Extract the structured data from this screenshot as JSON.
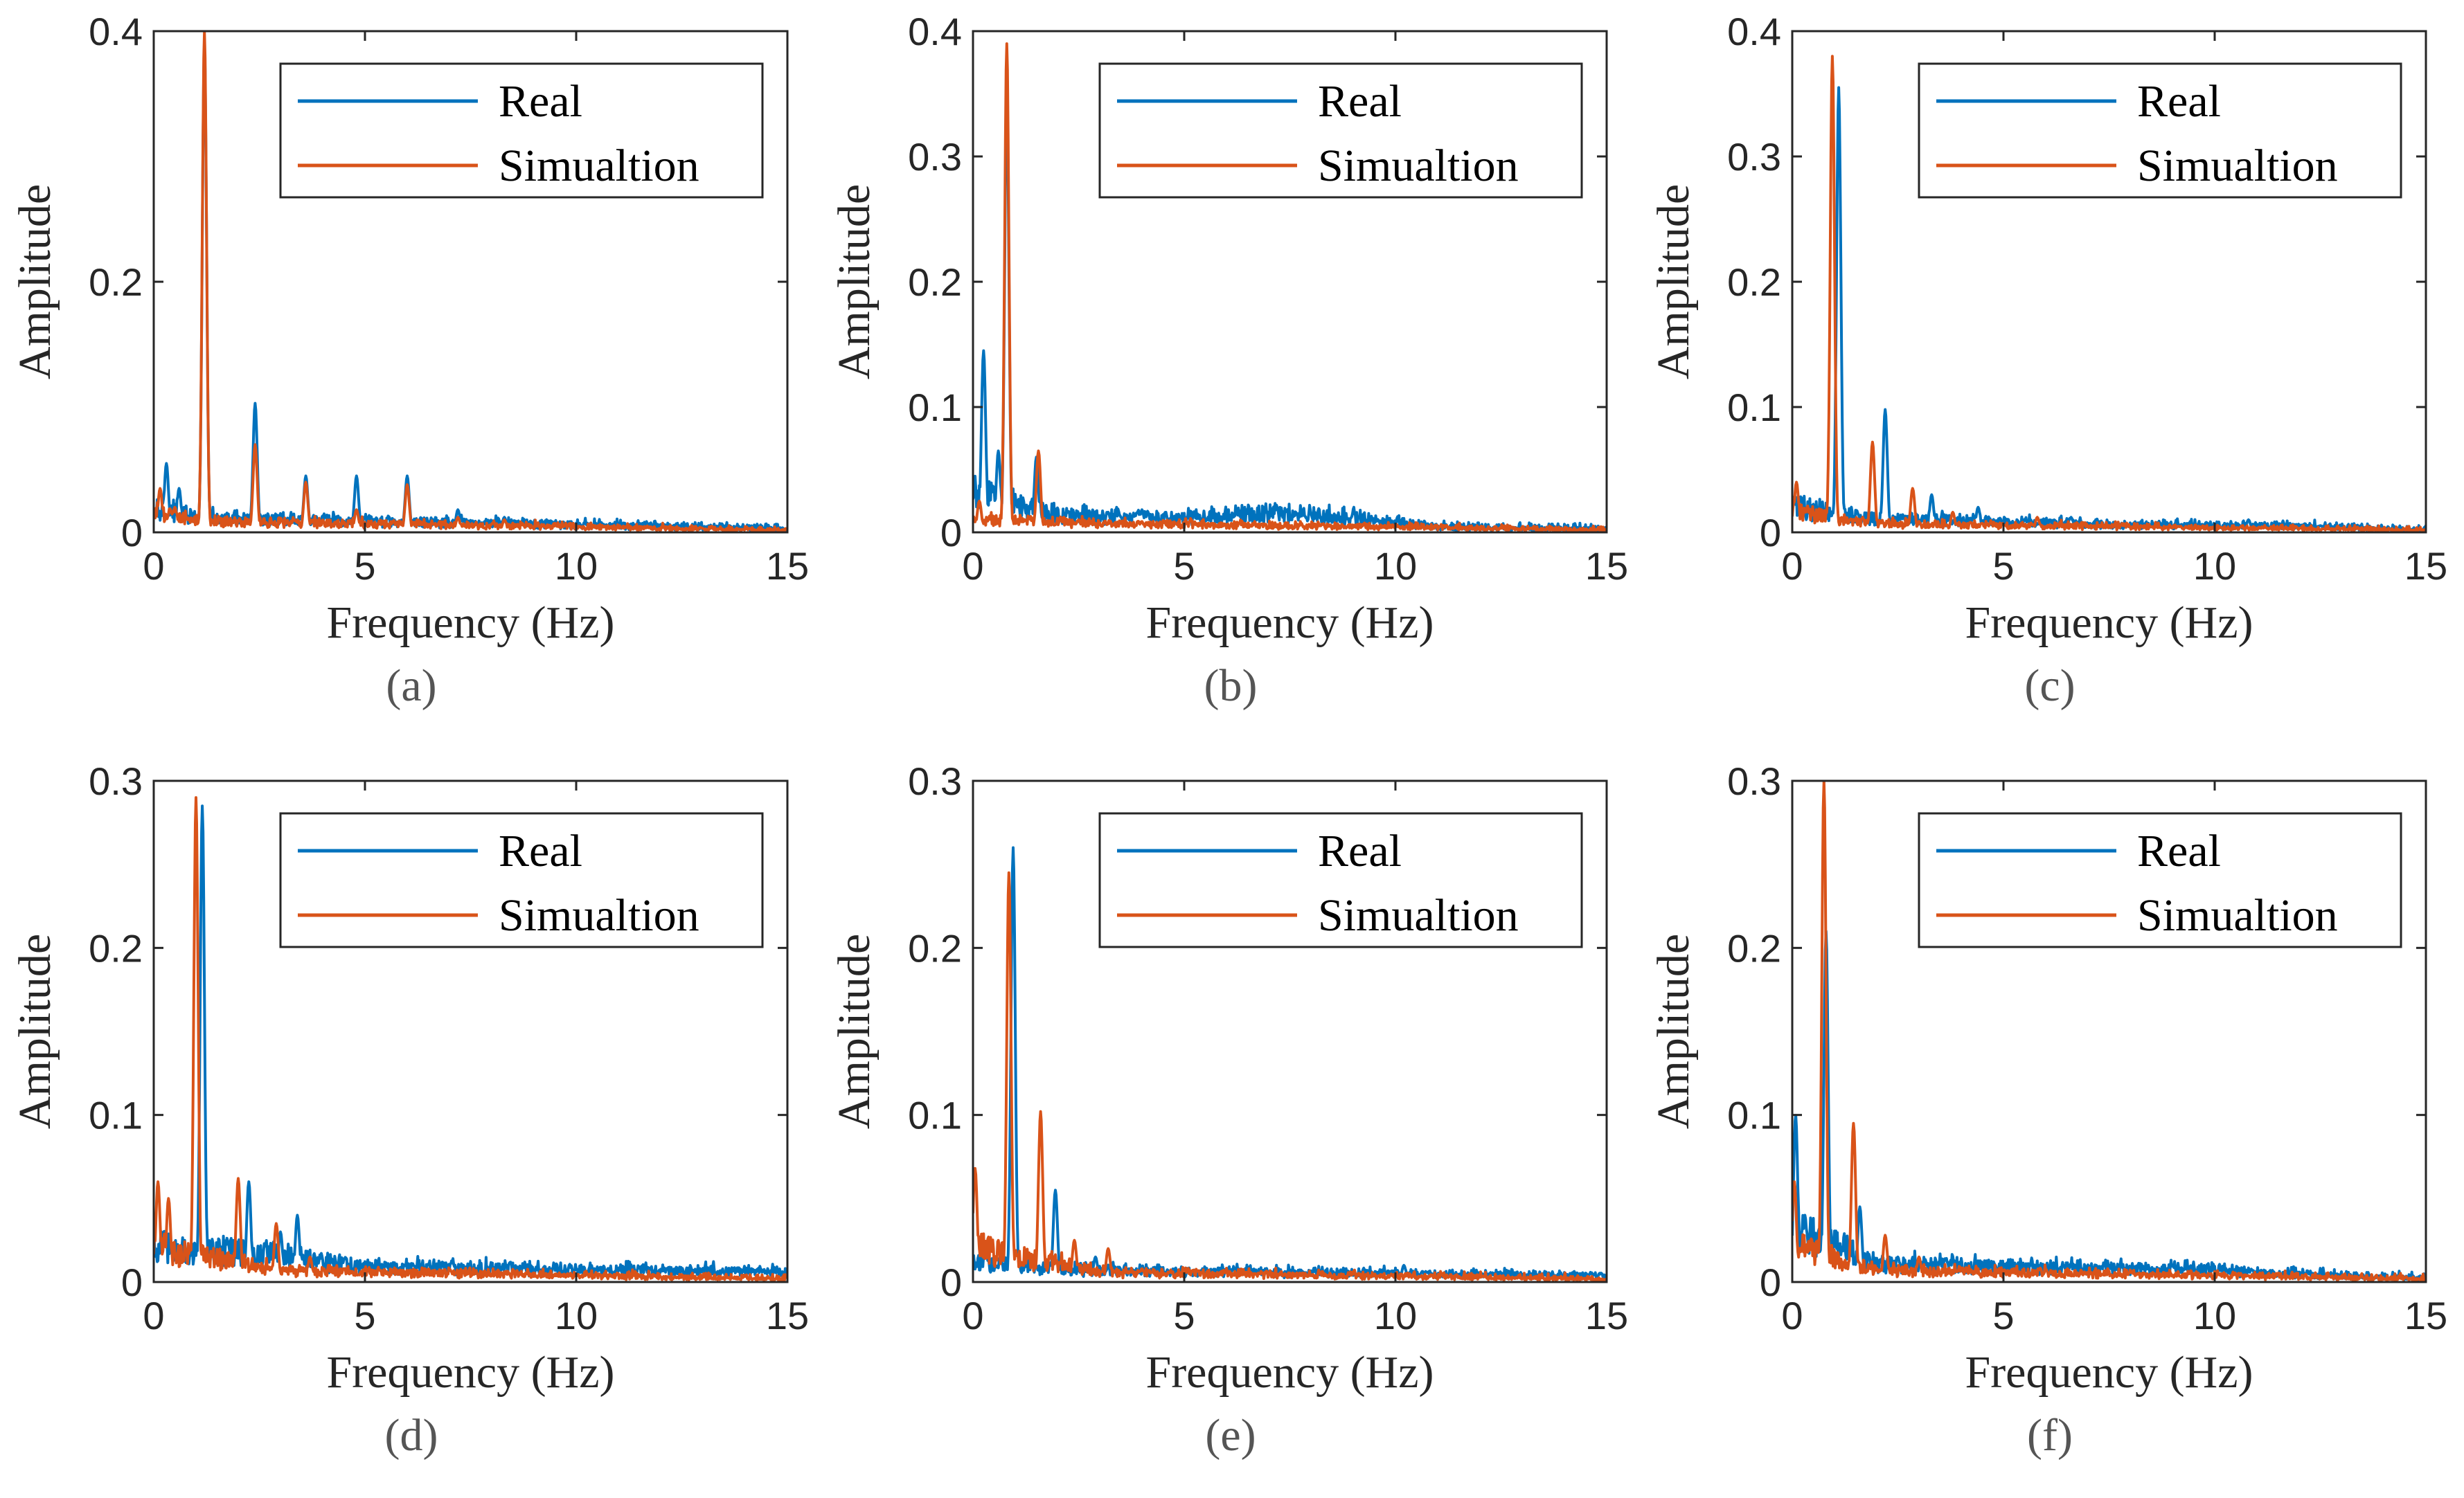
{
  "colors": {
    "real": "#0072BD",
    "simulation": "#D95319",
    "axis": "#262626"
  },
  "legend": {
    "real": "Real",
    "simulation": "Simualtion"
  },
  "chart_data": [
    {
      "id": "a",
      "caption": "(a)",
      "type": "line",
      "xlabel": "Frequency (Hz)",
      "ylabel": "Amplitude",
      "xlim": [
        0,
        15
      ],
      "ylim": [
        0,
        0.4
      ],
      "xticks": [
        "0",
        "5",
        "10",
        "15"
      ],
      "xtick_values": [
        0,
        5,
        10,
        15
      ],
      "yticks": [
        "0",
        "0.2",
        "0.4"
      ],
      "ytick_values": [
        0,
        0.2,
        0.4
      ],
      "grid": false,
      "legend_position": "top-right",
      "series": [
        {
          "name": "Real",
          "color": "#0072BD",
          "peaks": [
            [
              0.3,
              0.055
            ],
            [
              0.6,
              0.035
            ],
            [
              1.2,
              0.39
            ],
            [
              2.4,
              0.103
            ],
            [
              3.6,
              0.045
            ],
            [
              4.8,
              0.045
            ],
            [
              6.0,
              0.045
            ],
            [
              7.2,
              0.018
            ],
            [
              8.3,
              0.012
            ],
            [
              9.5,
              0.007
            ],
            [
              10.7,
              0.005
            ],
            [
              11.9,
              0.004
            ],
            [
              13.1,
              0.004
            ]
          ],
          "noise": 0.006,
          "baseline": [
            [
              0,
              0.02
            ],
            [
              1,
              0.01
            ],
            [
              15,
              0.002
            ]
          ]
        },
        {
          "name": "Simualtion",
          "color": "#D95319",
          "peaks": [
            [
              0.15,
              0.035
            ],
            [
              0.5,
              0.02
            ],
            [
              1.2,
              0.4
            ],
            [
              2.4,
              0.07
            ],
            [
              3.6,
              0.04
            ],
            [
              4.8,
              0.018
            ],
            [
              6.0,
              0.038
            ],
            [
              7.2,
              0.012
            ],
            [
              8.3,
              0.01
            ],
            [
              9.5,
              0.004
            ],
            [
              13.0,
              0.003
            ]
          ],
          "noise": 0.004,
          "baseline": [
            [
              0,
              0.015
            ],
            [
              1,
              0.008
            ],
            [
              15,
              0.001
            ]
          ]
        }
      ]
    },
    {
      "id": "b",
      "caption": "(b)",
      "type": "line",
      "xlabel": "Frequency (Hz)",
      "ylabel": "Amplitude",
      "xlim": [
        0,
        15
      ],
      "ylim": [
        0,
        0.4
      ],
      "xticks": [
        "0",
        "5",
        "10",
        "15"
      ],
      "xtick_values": [
        0,
        5,
        10,
        15
      ],
      "yticks": [
        "0",
        "0.1",
        "0.2",
        "0.3",
        "0.4"
      ],
      "ytick_values": [
        0,
        0.1,
        0.2,
        0.3,
        0.4
      ],
      "grid": false,
      "legend_position": "top-right",
      "series": [
        {
          "name": "Real",
          "color": "#0072BD",
          "peaks": [
            [
              0.25,
              0.145
            ],
            [
              0.6,
              0.065
            ],
            [
              0.8,
              0.35
            ],
            [
              1.5,
              0.06
            ],
            [
              3.2,
              0.016
            ],
            [
              4.0,
              0.018
            ],
            [
              6.5,
              0.015
            ],
            [
              7.2,
              0.016
            ],
            [
              8.0,
              0.014
            ]
          ],
          "noise": 0.007,
          "baseline": [
            [
              0,
              0.03
            ],
            [
              2,
              0.012
            ],
            [
              5,
              0.01
            ],
            [
              7,
              0.014
            ],
            [
              9,
              0.01
            ],
            [
              11,
              0.003
            ],
            [
              15,
              0.001
            ]
          ]
        },
        {
          "name": "Simualtion",
          "color": "#D95319",
          "peaks": [
            [
              0.15,
              0.025
            ],
            [
              0.8,
              0.39
            ],
            [
              1.55,
              0.065
            ],
            [
              2.5,
              0.01
            ],
            [
              4.0,
              0.008
            ]
          ],
          "noise": 0.004,
          "baseline": [
            [
              0,
              0.01
            ],
            [
              3,
              0.006
            ],
            [
              9,
              0.004
            ],
            [
              15,
              0.001
            ]
          ]
        }
      ]
    },
    {
      "id": "c",
      "caption": "(c)",
      "type": "line",
      "xlabel": "Frequency (Hz)",
      "ylabel": "Amplitude",
      "xlim": [
        0,
        15
      ],
      "ylim": [
        0,
        0.4
      ],
      "xticks": [
        "0",
        "5",
        "10",
        "15"
      ],
      "xtick_values": [
        0,
        5,
        10,
        15
      ],
      "yticks": [
        "0",
        "0.1",
        "0.2",
        "0.3",
        "0.4"
      ],
      "ytick_values": [
        0,
        0.1,
        0.2,
        0.3,
        0.4
      ],
      "grid": false,
      "legend_position": "top-right",
      "series": [
        {
          "name": "Real",
          "color": "#0072BD",
          "peaks": [
            [
              0.2,
              0.02
            ],
            [
              1.1,
              0.355
            ],
            [
              2.2,
              0.098
            ],
            [
              3.3,
              0.03
            ],
            [
              4.4,
              0.02
            ],
            [
              5.5,
              0.01
            ],
            [
              6.6,
              0.012
            ],
            [
              9.8,
              0.008
            ],
            [
              10.8,
              0.01
            ]
          ],
          "noise": 0.005,
          "baseline": [
            [
              0,
              0.02
            ],
            [
              2,
              0.01
            ],
            [
              8,
              0.005
            ],
            [
              12,
              0.004
            ],
            [
              15,
              0.001
            ]
          ]
        },
        {
          "name": "Simualtion",
          "color": "#D95319",
          "peaks": [
            [
              0.1,
              0.04
            ],
            [
              0.35,
              0.02
            ],
            [
              0.95,
              0.38
            ],
            [
              1.9,
              0.072
            ],
            [
              2.85,
              0.035
            ],
            [
              3.8,
              0.016
            ],
            [
              4.7,
              0.008
            ],
            [
              5.8,
              0.012
            ],
            [
              7.8,
              0.006
            ]
          ],
          "noise": 0.004,
          "baseline": [
            [
              0,
              0.015
            ],
            [
              2,
              0.006
            ],
            [
              15,
              0.001
            ]
          ]
        }
      ]
    },
    {
      "id": "d",
      "caption": "(d)",
      "type": "line",
      "xlabel": "Frequency (Hz)",
      "ylabel": "Amplitude",
      "xlim": [
        0,
        15
      ],
      "ylim": [
        0,
        0.3
      ],
      "xticks": [
        "0",
        "5",
        "10",
        "15"
      ],
      "xtick_values": [
        0,
        5,
        10,
        15
      ],
      "yticks": [
        "0",
        "0.1",
        "0.2",
        "0.3"
      ],
      "ytick_values": [
        0,
        0.1,
        0.2,
        0.3
      ],
      "grid": false,
      "legend_position": "top-right",
      "series": [
        {
          "name": "Real",
          "color": "#0072BD",
          "peaks": [
            [
              0.2,
              0.02
            ],
            [
              1.15,
              0.285
            ],
            [
              2.25,
              0.06
            ],
            [
              3.0,
              0.03
            ],
            [
              3.4,
              0.04
            ],
            [
              4.5,
              0.012
            ],
            [
              5.5,
              0.01
            ],
            [
              7.5,
              0.008
            ],
            [
              10.0,
              0.008
            ]
          ],
          "noise": 0.005,
          "baseline": [
            [
              0,
              0.02
            ],
            [
              3,
              0.015
            ],
            [
              5,
              0.008
            ],
            [
              15,
              0.005
            ]
          ]
        },
        {
          "name": "Simualtion",
          "color": "#D95319",
          "peaks": [
            [
              0.1,
              0.06
            ],
            [
              0.35,
              0.05
            ],
            [
              1.0,
              0.29
            ],
            [
              2.0,
              0.062
            ],
            [
              2.9,
              0.035
            ],
            [
              3.7,
              0.015
            ],
            [
              4.5,
              0.008
            ]
          ],
          "noise": 0.004,
          "baseline": [
            [
              0,
              0.02
            ],
            [
              3,
              0.006
            ],
            [
              15,
              0.001
            ]
          ]
        }
      ]
    },
    {
      "id": "e",
      "caption": "(e)",
      "type": "line",
      "xlabel": "Frequency (Hz)",
      "ylabel": "Amplitude",
      "xlim": [
        0,
        15
      ],
      "ylim": [
        0,
        0.3
      ],
      "xticks": [
        "0",
        "5",
        "10",
        "15"
      ],
      "xtick_values": [
        0,
        5,
        10,
        15
      ],
      "yticks": [
        "0",
        "0.1",
        "0.2",
        "0.3"
      ],
      "ytick_values": [
        0,
        0.1,
        0.2,
        0.3
      ],
      "grid": false,
      "legend_position": "top-right",
      "series": [
        {
          "name": "Real",
          "color": "#0072BD",
          "peaks": [
            [
              0.3,
              0.02
            ],
            [
              0.95,
              0.26
            ],
            [
              1.95,
              0.055
            ],
            [
              2.9,
              0.015
            ],
            [
              6.5,
              0.006
            ],
            [
              10.2,
              0.01
            ]
          ],
          "noise": 0.004,
          "baseline": [
            [
              0,
              0.01
            ],
            [
              3,
              0.006
            ],
            [
              15,
              0.003
            ]
          ]
        },
        {
          "name": "Simualtion",
          "color": "#D95319",
          "peaks": [
            [
              0.05,
              0.068
            ],
            [
              0.85,
              0.245
            ],
            [
              1.6,
              0.102
            ],
            [
              2.4,
              0.025
            ],
            [
              3.2,
              0.02
            ],
            [
              4.0,
              0.008
            ],
            [
              5.2,
              0.007
            ]
          ],
          "noise": 0.004,
          "baseline": [
            [
              0,
              0.02
            ],
            [
              3,
              0.005
            ],
            [
              15,
              0.001
            ]
          ]
        }
      ]
    },
    {
      "id": "f",
      "caption": "(f)",
      "type": "line",
      "xlabel": "Frequency (Hz)",
      "ylabel": "Amplitude",
      "xlim": [
        0,
        15
      ],
      "ylim": [
        0,
        0.3
      ],
      "xticks": [
        "0",
        "5",
        "10",
        "15"
      ],
      "xtick_values": [
        0,
        5,
        10,
        15
      ],
      "yticks": [
        "0",
        "0.1",
        "0.2",
        "0.3"
      ],
      "ytick_values": [
        0,
        0.1,
        0.2,
        0.3
      ],
      "grid": false,
      "legend_position": "top-right",
      "series": [
        {
          "name": "Real",
          "color": "#0072BD",
          "peaks": [
            [
              0.08,
              0.1
            ],
            [
              0.3,
              0.04
            ],
            [
              0.8,
              0.21
            ],
            [
              1.6,
              0.045
            ],
            [
              2.5,
              0.015
            ],
            [
              3.5,
              0.012
            ],
            [
              7.5,
              0.01
            ],
            [
              9.0,
              0.01
            ]
          ],
          "noise": 0.005,
          "baseline": [
            [
              0,
              0.03
            ],
            [
              2,
              0.01
            ],
            [
              10,
              0.006
            ],
            [
              15,
              0.001
            ]
          ]
        },
        {
          "name": "Simualtion",
          "color": "#D95319",
          "peaks": [
            [
              0.05,
              0.06
            ],
            [
              0.75,
              0.3
            ],
            [
              1.45,
              0.095
            ],
            [
              2.2,
              0.028
            ],
            [
              3.0,
              0.015
            ],
            [
              6.0,
              0.007
            ],
            [
              8.0,
              0.006
            ]
          ],
          "noise": 0.004,
          "baseline": [
            [
              0,
              0.02
            ],
            [
              2,
              0.006
            ],
            [
              15,
              0.001
            ]
          ]
        }
      ]
    }
  ]
}
